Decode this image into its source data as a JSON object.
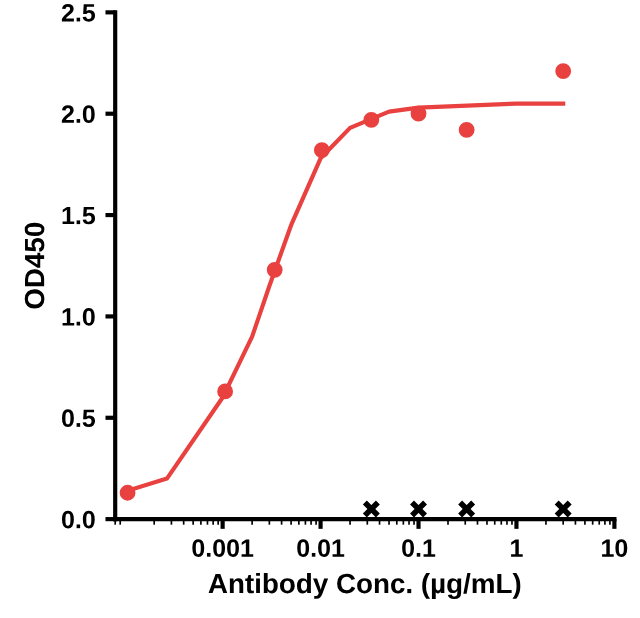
{
  "chart_data": {
    "type": "scatter",
    "xlabel": "Antibody Conc. (µg/mL)",
    "ylabel": "OD450",
    "log": "x",
    "grid": false,
    "legend": false,
    "xlim": [
      8e-05,
      10
    ],
    "xticks": [
      {
        "value": 0.001,
        "label": "0.001"
      },
      {
        "value": 0.01,
        "label": "0.01"
      },
      {
        "value": 0.1,
        "label": "0.1"
      },
      {
        "value": 1,
        "label": "1"
      },
      {
        "value": 10,
        "label": "10"
      }
    ],
    "ylim": [
      0,
      2.5
    ],
    "yticks": [
      {
        "value": 0,
        "label": "0.0"
      },
      {
        "value": 0.5,
        "label": "0.5"
      },
      {
        "value": 1,
        "label": "1.0"
      },
      {
        "value": 1.5,
        "label": "1.5"
      },
      {
        "value": 2,
        "label": "2.0"
      },
      {
        "value": 2.5,
        "label": "2.5"
      }
    ],
    "series": [
      {
        "type": "line",
        "color": "#e8413f",
        "marker": "none",
        "x": [
          0.000107,
          0.00027,
          0.001,
          0.002,
          0.003,
          0.005,
          0.01,
          0.02,
          0.05,
          0.1,
          1,
          3.0
        ],
        "values": [
          0.14,
          0.2,
          0.6,
          0.9,
          1.15,
          1.45,
          1.78,
          1.93,
          2.01,
          2.03,
          2.05,
          2.05
        ]
      },
      {
        "color": "#e8413f",
        "marker": "circle",
        "x": [
          0.000107,
          0.00106,
          0.0034,
          0.0103,
          0.033,
          0.1,
          0.31,
          3.0
        ],
        "values": [
          0.13,
          0.63,
          1.23,
          1.82,
          1.97,
          2.0,
          1.92,
          2.21
        ]
      },
      {
        "color": "#000000",
        "marker": "cross",
        "x": [
          0.033,
          0.1,
          0.31,
          3.0
        ],
        "values": [
          0.05,
          0.05,
          0.05,
          0.05
        ]
      }
    ]
  }
}
